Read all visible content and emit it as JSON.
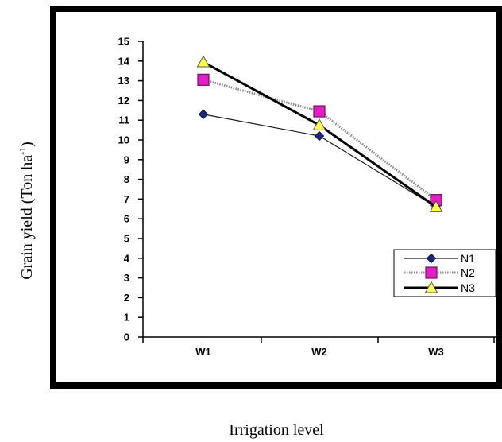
{
  "chart_data": {
    "type": "line",
    "categories": [
      "W1",
      "W2",
      "W3"
    ],
    "series": [
      {
        "name": "N1",
        "values": [
          11.3,
          10.2,
          6.6
        ],
        "color": "#1a2a80",
        "marker": "diamond"
      },
      {
        "name": "N2",
        "values": [
          13.05,
          11.45,
          6.95
        ],
        "color": "#e020c0",
        "marker": "square"
      },
      {
        "name": "N3",
        "values": [
          13.95,
          10.75,
          6.6
        ],
        "color": "#ffff50",
        "marker": "triangle"
      }
    ],
    "title": "",
    "xlabel": "Irrigation level",
    "ylabel_main": "Grain yield (Ton ha",
    "ylabel_sup": "-1",
    "ylabel_close": ")",
    "ylim": [
      0,
      15
    ],
    "yticks": [
      "0",
      "1",
      "2",
      "3",
      "4",
      "5",
      "6",
      "7",
      "8",
      "9",
      "10",
      "11",
      "12",
      "13",
      "14",
      "15"
    ],
    "legend_position": "bottom-right",
    "grid": false
  }
}
